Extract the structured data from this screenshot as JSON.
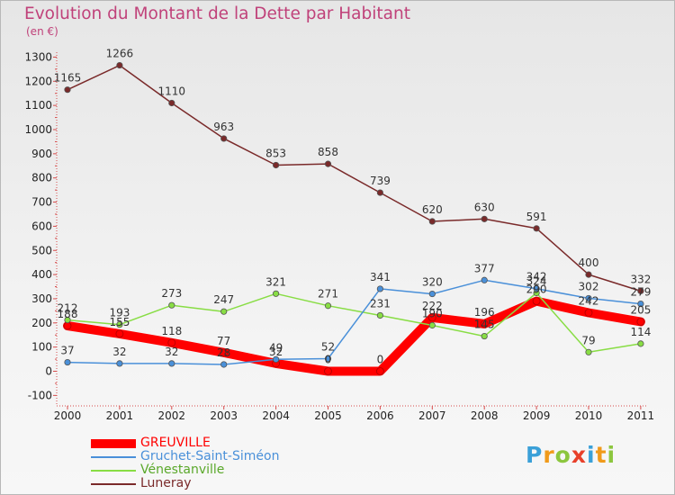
{
  "title": "Evolution du Montant de la Dette par Habitant",
  "unit": "(en €)",
  "logo": [
    {
      "ch": "P",
      "color": "#3aa0d8"
    },
    {
      "ch": "r",
      "color": "#f09a1a"
    },
    {
      "ch": "o",
      "color": "#8cc63e"
    },
    {
      "ch": "x",
      "color": "#e8402a"
    },
    {
      "ch": "i",
      "color": "#3aa0d8"
    },
    {
      "ch": "t",
      "color": "#f09a1a"
    },
    {
      "ch": "i",
      "color": "#8cc63e"
    }
  ],
  "chart_data": {
    "type": "line",
    "title": "Evolution du Montant de la Dette par Habitant",
    "ylabel": "(en €)",
    "ylim": [
      -100,
      1300
    ],
    "yticks": [
      -100,
      0,
      100,
      200,
      300,
      400,
      500,
      600,
      700,
      800,
      900,
      1000,
      1100,
      1200,
      1300
    ],
    "x": [
      "2000",
      "2001",
      "2002",
      "2003",
      "2004",
      "2005",
      "2006",
      "2007",
      "2008",
      "2009",
      "2010",
      "2011"
    ],
    "grid": false,
    "legend": "bottom-left",
    "series": [
      {
        "name": "GREUVILLE",
        "color": "#ff0000",
        "values": [
          188,
          155,
          118,
          77,
          32,
          0,
          0,
          222,
          196,
          290,
          242,
          205
        ],
        "labels": [
          "188",
          "155",
          "118",
          "77",
          "32",
          "0",
          "0",
          "222",
          "196",
          "290",
          "242",
          "205"
        ]
      },
      {
        "name": "Gruchet-Saint-Siméon",
        "color": "#4a90d9",
        "values": [
          37,
          32,
          32,
          28,
          49,
          52,
          341,
          320,
          377,
          342,
          302,
          279
        ],
        "labels": [
          "37",
          "32",
          "32",
          "28",
          "49",
          "52",
          "341",
          "320",
          "377",
          "342",
          "302",
          "279"
        ]
      },
      {
        "name": "Vénestanville",
        "color": "#88dd44",
        "values": [
          212,
          193,
          273,
          247,
          321,
          271,
          231,
          190,
          145,
          324,
          79,
          114
        ],
        "labels": [
          "212",
          "193",
          "273",
          "247",
          "321",
          "271",
          "231",
          "190",
          "145",
          "324",
          "79",
          "114"
        ]
      },
      {
        "name": "Luneray",
        "color": "#7a2a2a",
        "values": [
          1165,
          1266,
          1110,
          963,
          853,
          858,
          739,
          620,
          630,
          591,
          400,
          332
        ],
        "labels": [
          "1165",
          "1266",
          "1110",
          "963",
          "853",
          "858",
          "739",
          "620",
          "630",
          "591",
          "400",
          "332"
        ]
      }
    ]
  }
}
